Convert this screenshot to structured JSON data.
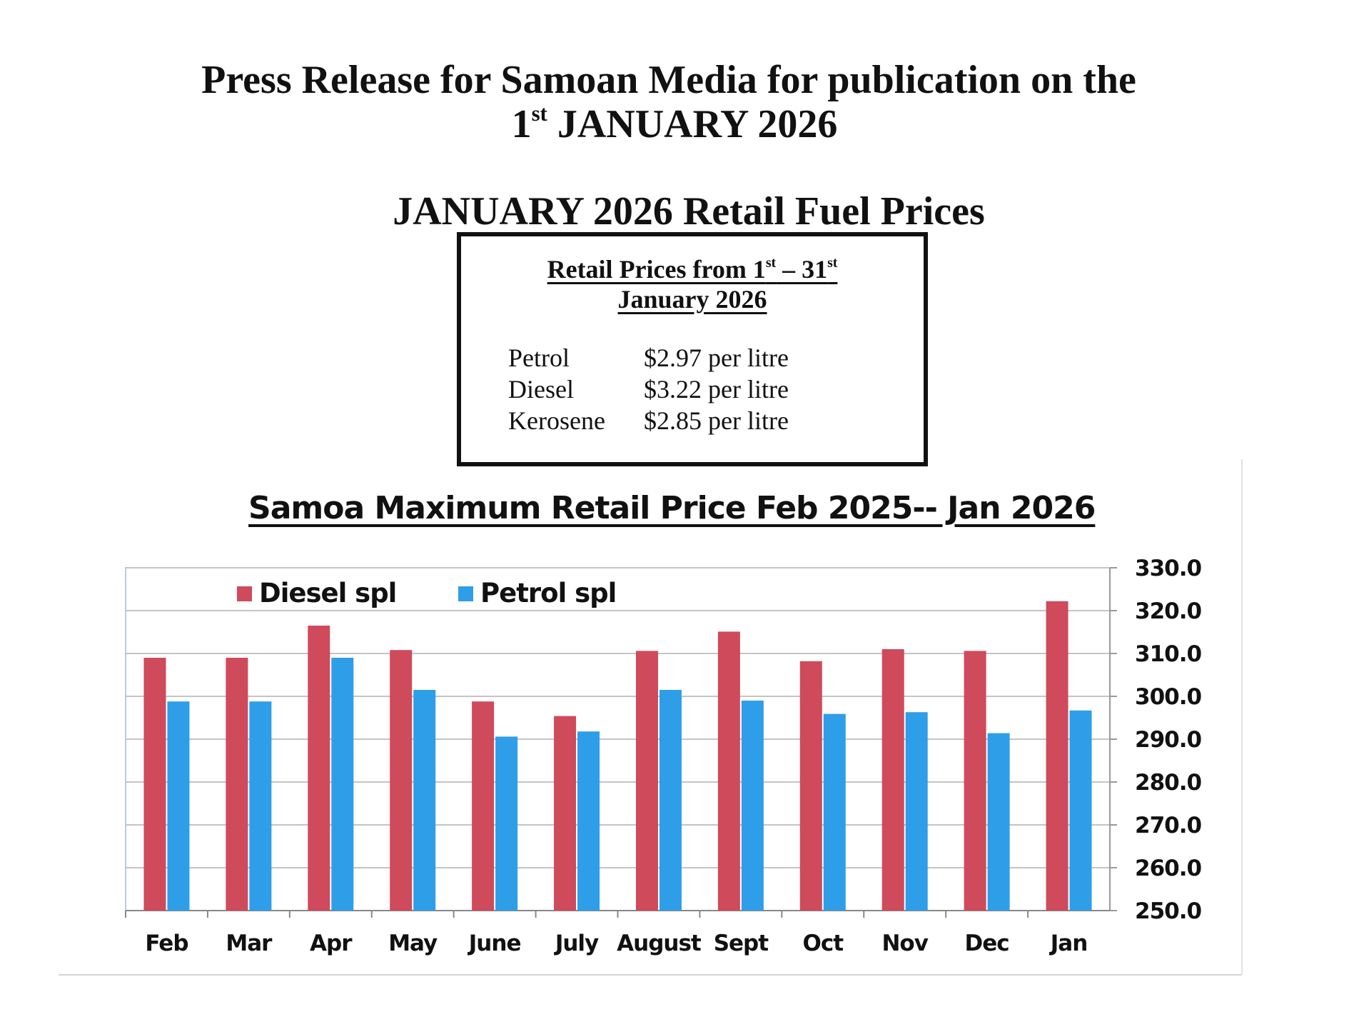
{
  "header": {
    "line1": "Press Release for Samoan Media for publication on the",
    "line2_num": "1",
    "line2_sup": "st",
    "line2_text": " JANUARY 2026",
    "subtitle": "JANUARY 2026 Retail Fuel Prices"
  },
  "price_box": {
    "heading_prefix": "Retail Prices from 1",
    "heading_sup1": "st",
    "heading_mid": " – 31",
    "heading_sup2": "st",
    "heading_line2": "January 2026",
    "rows": [
      {
        "name": "Petrol",
        "price": "$2.97 per litre"
      },
      {
        "name": "Diesel",
        "price": "$3.22 per litre"
      },
      {
        "name": "Kerosene",
        "price": "$2.85 per litre"
      }
    ]
  },
  "chart_data": {
    "type": "bar",
    "title": "Samoa Maximum Retail  Price  Feb  2025-- Jan  2026",
    "categories": [
      "Feb",
      "Mar",
      "Apr",
      "May",
      "June",
      "July",
      "August",
      "Sept",
      "Oct",
      "Nov",
      "Dec",
      "Jan"
    ],
    "series": [
      {
        "name": "Diesel spl",
        "color": "#cf4a5b",
        "values": [
          309.0,
          309.0,
          316.5,
          310.8,
          298.8,
          295.4,
          310.6,
          315.1,
          308.2,
          311.0,
          310.6,
          322.2
        ]
      },
      {
        "name": "Petrol spl",
        "color": "#2e9ee8",
        "values": [
          298.8,
          298.8,
          309.0,
          301.5,
          290.6,
          291.8,
          301.5,
          299.0,
          295.9,
          296.3,
          291.4,
          296.7
        ]
      }
    ],
    "ylim": [
      250.0,
      330.0
    ],
    "yticks": [
      "250.0",
      "260.0",
      "270.0",
      "280.0",
      "290.0",
      "300.0",
      "310.0",
      "320.0",
      "330.0"
    ],
    "y_axis_side": "right",
    "grid": true,
    "legend": "top-left"
  }
}
